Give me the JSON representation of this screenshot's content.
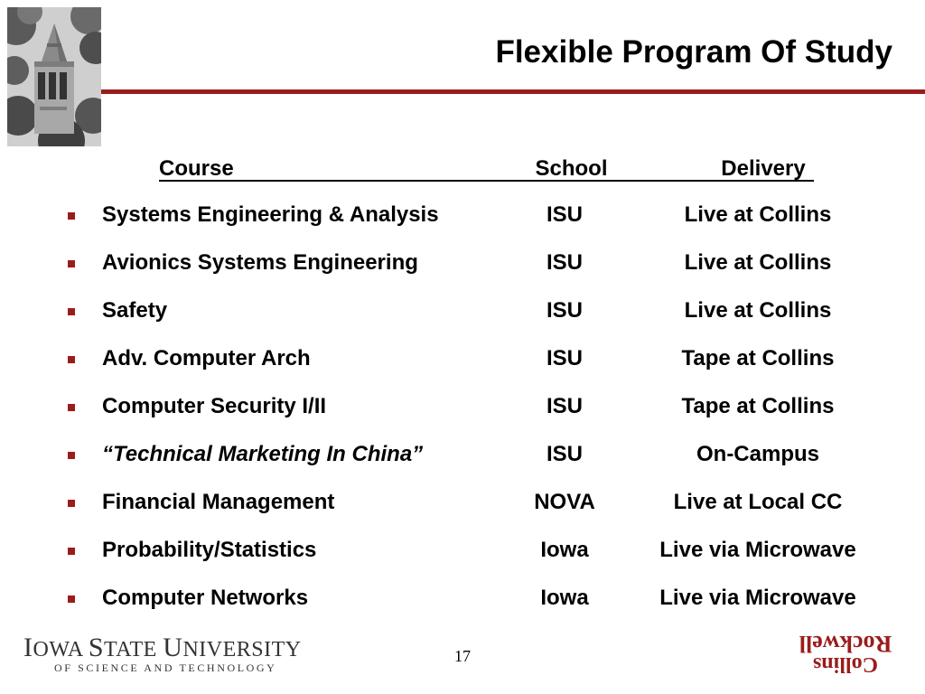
{
  "slide": {
    "title": "Flexible Program Of Study",
    "page_number": "17",
    "accent_color": "#9b1c1c",
    "bullet_color": "#9b1c1c"
  },
  "table": {
    "headers": {
      "course": "Course",
      "school": "School",
      "delivery": "Delivery"
    },
    "rows": [
      {
        "course": "Systems Engineering & Analysis",
        "school": "ISU",
        "delivery": "Live at Collins",
        "italic": false
      },
      {
        "course": "Avionics Systems Engineering",
        "school": "ISU",
        "delivery": "Live at Collins",
        "italic": false
      },
      {
        "course": "Safety",
        "school": "ISU",
        "delivery": "Live at Collins",
        "italic": false
      },
      {
        "course": "Adv. Computer Arch",
        "school": "ISU",
        "delivery": "Tape at Collins",
        "italic": false
      },
      {
        "course": "Computer Security I/II",
        "school": "ISU",
        "delivery": "Tape at Collins",
        "italic": false
      },
      {
        "course": "“Technical Marketing In China”",
        "school": "ISU",
        "delivery": "On-Campus",
        "italic": true
      },
      {
        "course": "Financial Management",
        "school": "NOVA",
        "delivery": "Live at Local CC",
        "italic": false
      },
      {
        "course": "Probability/Statistics",
        "school": "Iowa",
        "delivery": "Live via Microwave",
        "italic": false
      },
      {
        "course": "Computer Networks",
        "school": "Iowa",
        "delivery": "Live via Microwave",
        "italic": false
      }
    ]
  },
  "footer": {
    "isu_logo": {
      "name": "Iowa State University",
      "subtitle": "of science and technology",
      "display_1": "I",
      "display_2": "OWA ",
      "display_3": "S",
      "display_4": "TATE ",
      "display_5": "U",
      "display_6": "NIVERSITY",
      "sub_display": "OF SCIENCE AND TECHNOLOGY"
    },
    "rockwell_collins_logo": {
      "line1": "Collins",
      "line2": "Rockwell",
      "color": "#b01c1c"
    }
  }
}
